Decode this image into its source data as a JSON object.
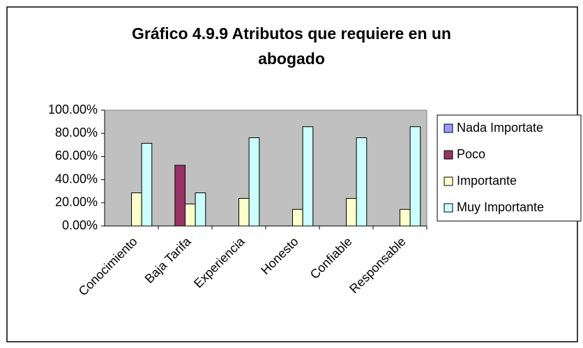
{
  "chart_data": {
    "type": "bar",
    "title": "Gráfico 4.9.9 Atributos que requiere en un abogado",
    "categories": [
      "Conocimiento",
      "Baja Tarifa",
      "Experiencia",
      "Honesto",
      "Confiable",
      "Responsable"
    ],
    "series": [
      {
        "name": "Nada Importate",
        "color": "#9999ff",
        "values": [
          0,
          0,
          0,
          0,
          0,
          0
        ]
      },
      {
        "name": "Poco",
        "color": "#993366",
        "values": [
          0,
          52.4,
          0,
          0,
          0,
          0
        ]
      },
      {
        "name": "Importante",
        "color": "#ffffcc",
        "values": [
          28.6,
          19,
          23.8,
          14.3,
          23.8,
          14.3
        ]
      },
      {
        "name": "Muy Importante",
        "color": "#ccffff",
        "values": [
          71.4,
          28.6,
          76.2,
          85.7,
          76.2,
          85.7
        ]
      }
    ],
    "ylim": [
      0,
      100
    ],
    "yticks": [
      {
        "value": 0,
        "label": "0.00%"
      },
      {
        "value": 20,
        "label": "20.00%"
      },
      {
        "value": 40,
        "label": "40.00%"
      },
      {
        "value": 60,
        "label": "60.00%"
      },
      {
        "value": 80,
        "label": "80.00%"
      },
      {
        "value": 100,
        "label": "100.00%"
      }
    ],
    "legend": "right",
    "plot_background": "#c0c0c0"
  }
}
